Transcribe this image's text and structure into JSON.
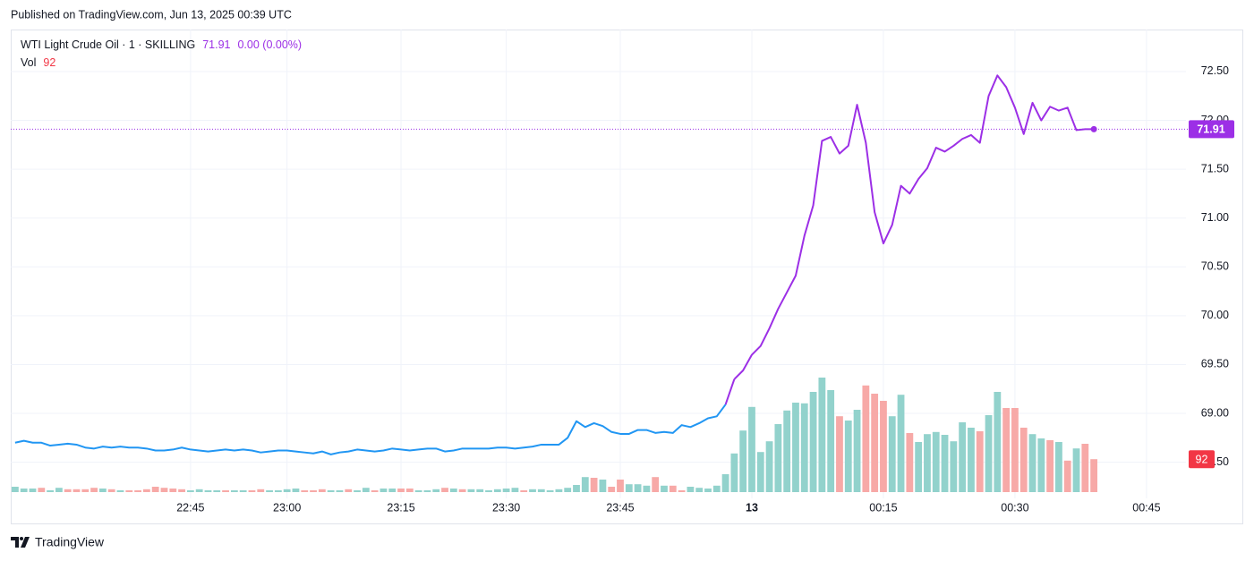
{
  "header": {
    "published": "Published on TradingView.com, Jun 13, 2025 00:39 UTC"
  },
  "footer": {
    "brand": "TradingView"
  },
  "chart_data": {
    "type": "line",
    "change": "0.00 (0.00%)",
    "grid": true,
    "ylim": [
      68.13,
      72.93
    ],
    "yticks": [
      {
        "value": 68.5,
        "label": "68.50"
      },
      {
        "value": 69,
        "label": "69.00"
      },
      {
        "value": 69.5,
        "label": "69.50"
      },
      {
        "value": 70,
        "label": "70.00"
      },
      {
        "value": 70.5,
        "label": "70.50"
      },
      {
        "value": 71,
        "label": "71.00"
      },
      {
        "value": 71.5,
        "label": "71.50"
      },
      {
        "value": 72,
        "label": "72.00"
      },
      {
        "value": 72.5,
        "label": "72.50"
      }
    ],
    "categories": [
      null,
      null,
      null,
      null,
      null,
      null,
      null,
      null,
      null,
      null,
      null,
      null,
      null,
      null,
      null,
      null,
      null,
      null,
      null,
      null,
      "22:45",
      null,
      null,
      null,
      null,
      null,
      null,
      null,
      null,
      null,
      null,
      "23:00",
      null,
      null,
      null,
      null,
      null,
      null,
      null,
      null,
      null,
      null,
      null,
      null,
      "23:15",
      null,
      null,
      null,
      null,
      null,
      null,
      null,
      null,
      null,
      null,
      null,
      "23:30",
      null,
      null,
      null,
      null,
      null,
      null,
      null,
      null,
      null,
      null,
      null,
      null,
      "23:45",
      null,
      null,
      null,
      null,
      null,
      null,
      null,
      null,
      null,
      null,
      null,
      null,
      null,
      null,
      "13",
      null,
      null,
      null,
      null,
      null,
      null,
      null,
      null,
      null,
      null,
      null,
      null,
      null,
      null,
      "00:15",
      null,
      null,
      null,
      null,
      null,
      null,
      null,
      null,
      null,
      null,
      null,
      null,
      null,
      null,
      "00:30",
      null,
      null,
      null,
      null,
      null,
      null,
      null,
      null,
      null,
      null,
      null,
      null,
      null,
      null,
      "00:45",
      null,
      null,
      null,
      null
    ],
    "series": [
      {
        "name": "WTI Light Crude Oil · 1 · SKILLING",
        "color": "#2196f3",
        "highlight_color": "#9c2fe6",
        "highlight_from": 82,
        "values": [
          68.7,
          68.72,
          68.7,
          68.7,
          68.67,
          68.68,
          68.69,
          68.68,
          68.65,
          68.64,
          68.66,
          68.65,
          68.66,
          68.65,
          68.65,
          68.64,
          68.62,
          68.62,
          68.63,
          68.65,
          68.63,
          68.62,
          68.61,
          68.62,
          68.63,
          68.62,
          68.63,
          68.62,
          68.6,
          68.61,
          68.62,
          68.62,
          68.61,
          68.6,
          68.59,
          68.61,
          68.58,
          68.6,
          68.61,
          68.63,
          68.62,
          68.61,
          68.62,
          68.64,
          68.63,
          68.62,
          68.63,
          68.64,
          68.64,
          68.61,
          68.62,
          68.64,
          68.64,
          68.64,
          68.64,
          68.65,
          68.65,
          68.64,
          68.65,
          68.66,
          68.68,
          68.68,
          68.68,
          68.75,
          68.92,
          68.86,
          68.9,
          68.87,
          68.81,
          68.79,
          68.79,
          68.83,
          68.83,
          68.8,
          68.81,
          68.8,
          68.88,
          68.86,
          68.9,
          68.95,
          68.97,
          69.09,
          69.35,
          69.44,
          69.6,
          69.69,
          69.87,
          70.07,
          70.24,
          70.41,
          70.82,
          71.13,
          71.79,
          71.83,
          71.66,
          71.74,
          72.16,
          71.77,
          71.06,
          70.74,
          70.93,
          71.33,
          71.25,
          71.4,
          71.51,
          71.72,
          71.68,
          71.74,
          71.81,
          71.85,
          71.77,
          72.25,
          72.46,
          72.34,
          72.13,
          71.86,
          72.18,
          72.0,
          72.14,
          72.1,
          72.13,
          71.9,
          71.91,
          71.91,
          null,
          null,
          null,
          null,
          null,
          null,
          null,
          null,
          null,
          null
        ]
      },
      {
        "name": "Vol",
        "type": "bar",
        "up_color": "#92d2cc",
        "down_color": "#f7a9a7",
        "label_color": "#f23645",
        "values": [
          15,
          10,
          10,
          12,
          5,
          12,
          8,
          8,
          8,
          12,
          10,
          8,
          5,
          5,
          5,
          8,
          15,
          12,
          10,
          8,
          5,
          8,
          5,
          5,
          5,
          5,
          5,
          5,
          8,
          5,
          5,
          8,
          10,
          5,
          5,
          8,
          5,
          5,
          8,
          5,
          12,
          5,
          10,
          10,
          10,
          10,
          5,
          5,
          8,
          12,
          10,
          8,
          8,
          8,
          5,
          8,
          10,
          12,
          5,
          8,
          8,
          5,
          8,
          12,
          20,
          42,
          40,
          35,
          15,
          35,
          22,
          22,
          18,
          42,
          18,
          18,
          5,
          15,
          12,
          10,
          18,
          50,
          108,
          172,
          238,
          112,
          142,
          190,
          228,
          250,
          248,
          280,
          320,
          285,
          212,
          200,
          230,
          298,
          275,
          255,
          212,
          272,
          165,
          140,
          162,
          168,
          160,
          142,
          195,
          180,
          170,
          215,
          280,
          235,
          235,
          180,
          162,
          150,
          145,
          140,
          88,
          122,
          135,
          92,
          null,
          null,
          null,
          null,
          null,
          null,
          null,
          null,
          null,
          null
        ],
        "directions": [
          "up",
          "up",
          "up",
          "down",
          "up",
          "up",
          "down",
          "down",
          "down",
          "down",
          "up",
          "down",
          "up",
          "down",
          "down",
          "down",
          "down",
          "down",
          "down",
          "down",
          "up",
          "up",
          "up",
          "up",
          "down",
          "up",
          "up",
          "down",
          "down",
          "up",
          "up",
          "up",
          "up",
          "down",
          "down",
          "down",
          "up",
          "up",
          "down",
          "up",
          "up",
          "down",
          "up",
          "up",
          "down",
          "down",
          "up",
          "up",
          "up",
          "down",
          "up",
          "down",
          "up",
          "up",
          "up",
          "up",
          "up",
          "up",
          "down",
          "up",
          "up",
          "up",
          "up",
          "up",
          "up",
          "up",
          "down",
          "up",
          "down",
          "down",
          "up",
          "up",
          "up",
          "down",
          "up",
          "down",
          "down",
          "up",
          "up",
          "up",
          "up",
          "up",
          "up",
          "up",
          "up",
          "up",
          "up",
          "up",
          "up",
          "up",
          "up",
          "up",
          "up",
          "up",
          "down",
          "up",
          "up",
          "down",
          "down",
          "down",
          "up",
          "up",
          "down",
          "up",
          "up",
          "up",
          "up",
          "up",
          "up",
          "up",
          "down",
          "up",
          "up",
          "down",
          "down",
          "down",
          "up",
          "up",
          "down",
          "up",
          "down",
          "up",
          "down",
          "down",
          null,
          null,
          null,
          null,
          null,
          null,
          null,
          null,
          null,
          null
        ]
      }
    ]
  }
}
